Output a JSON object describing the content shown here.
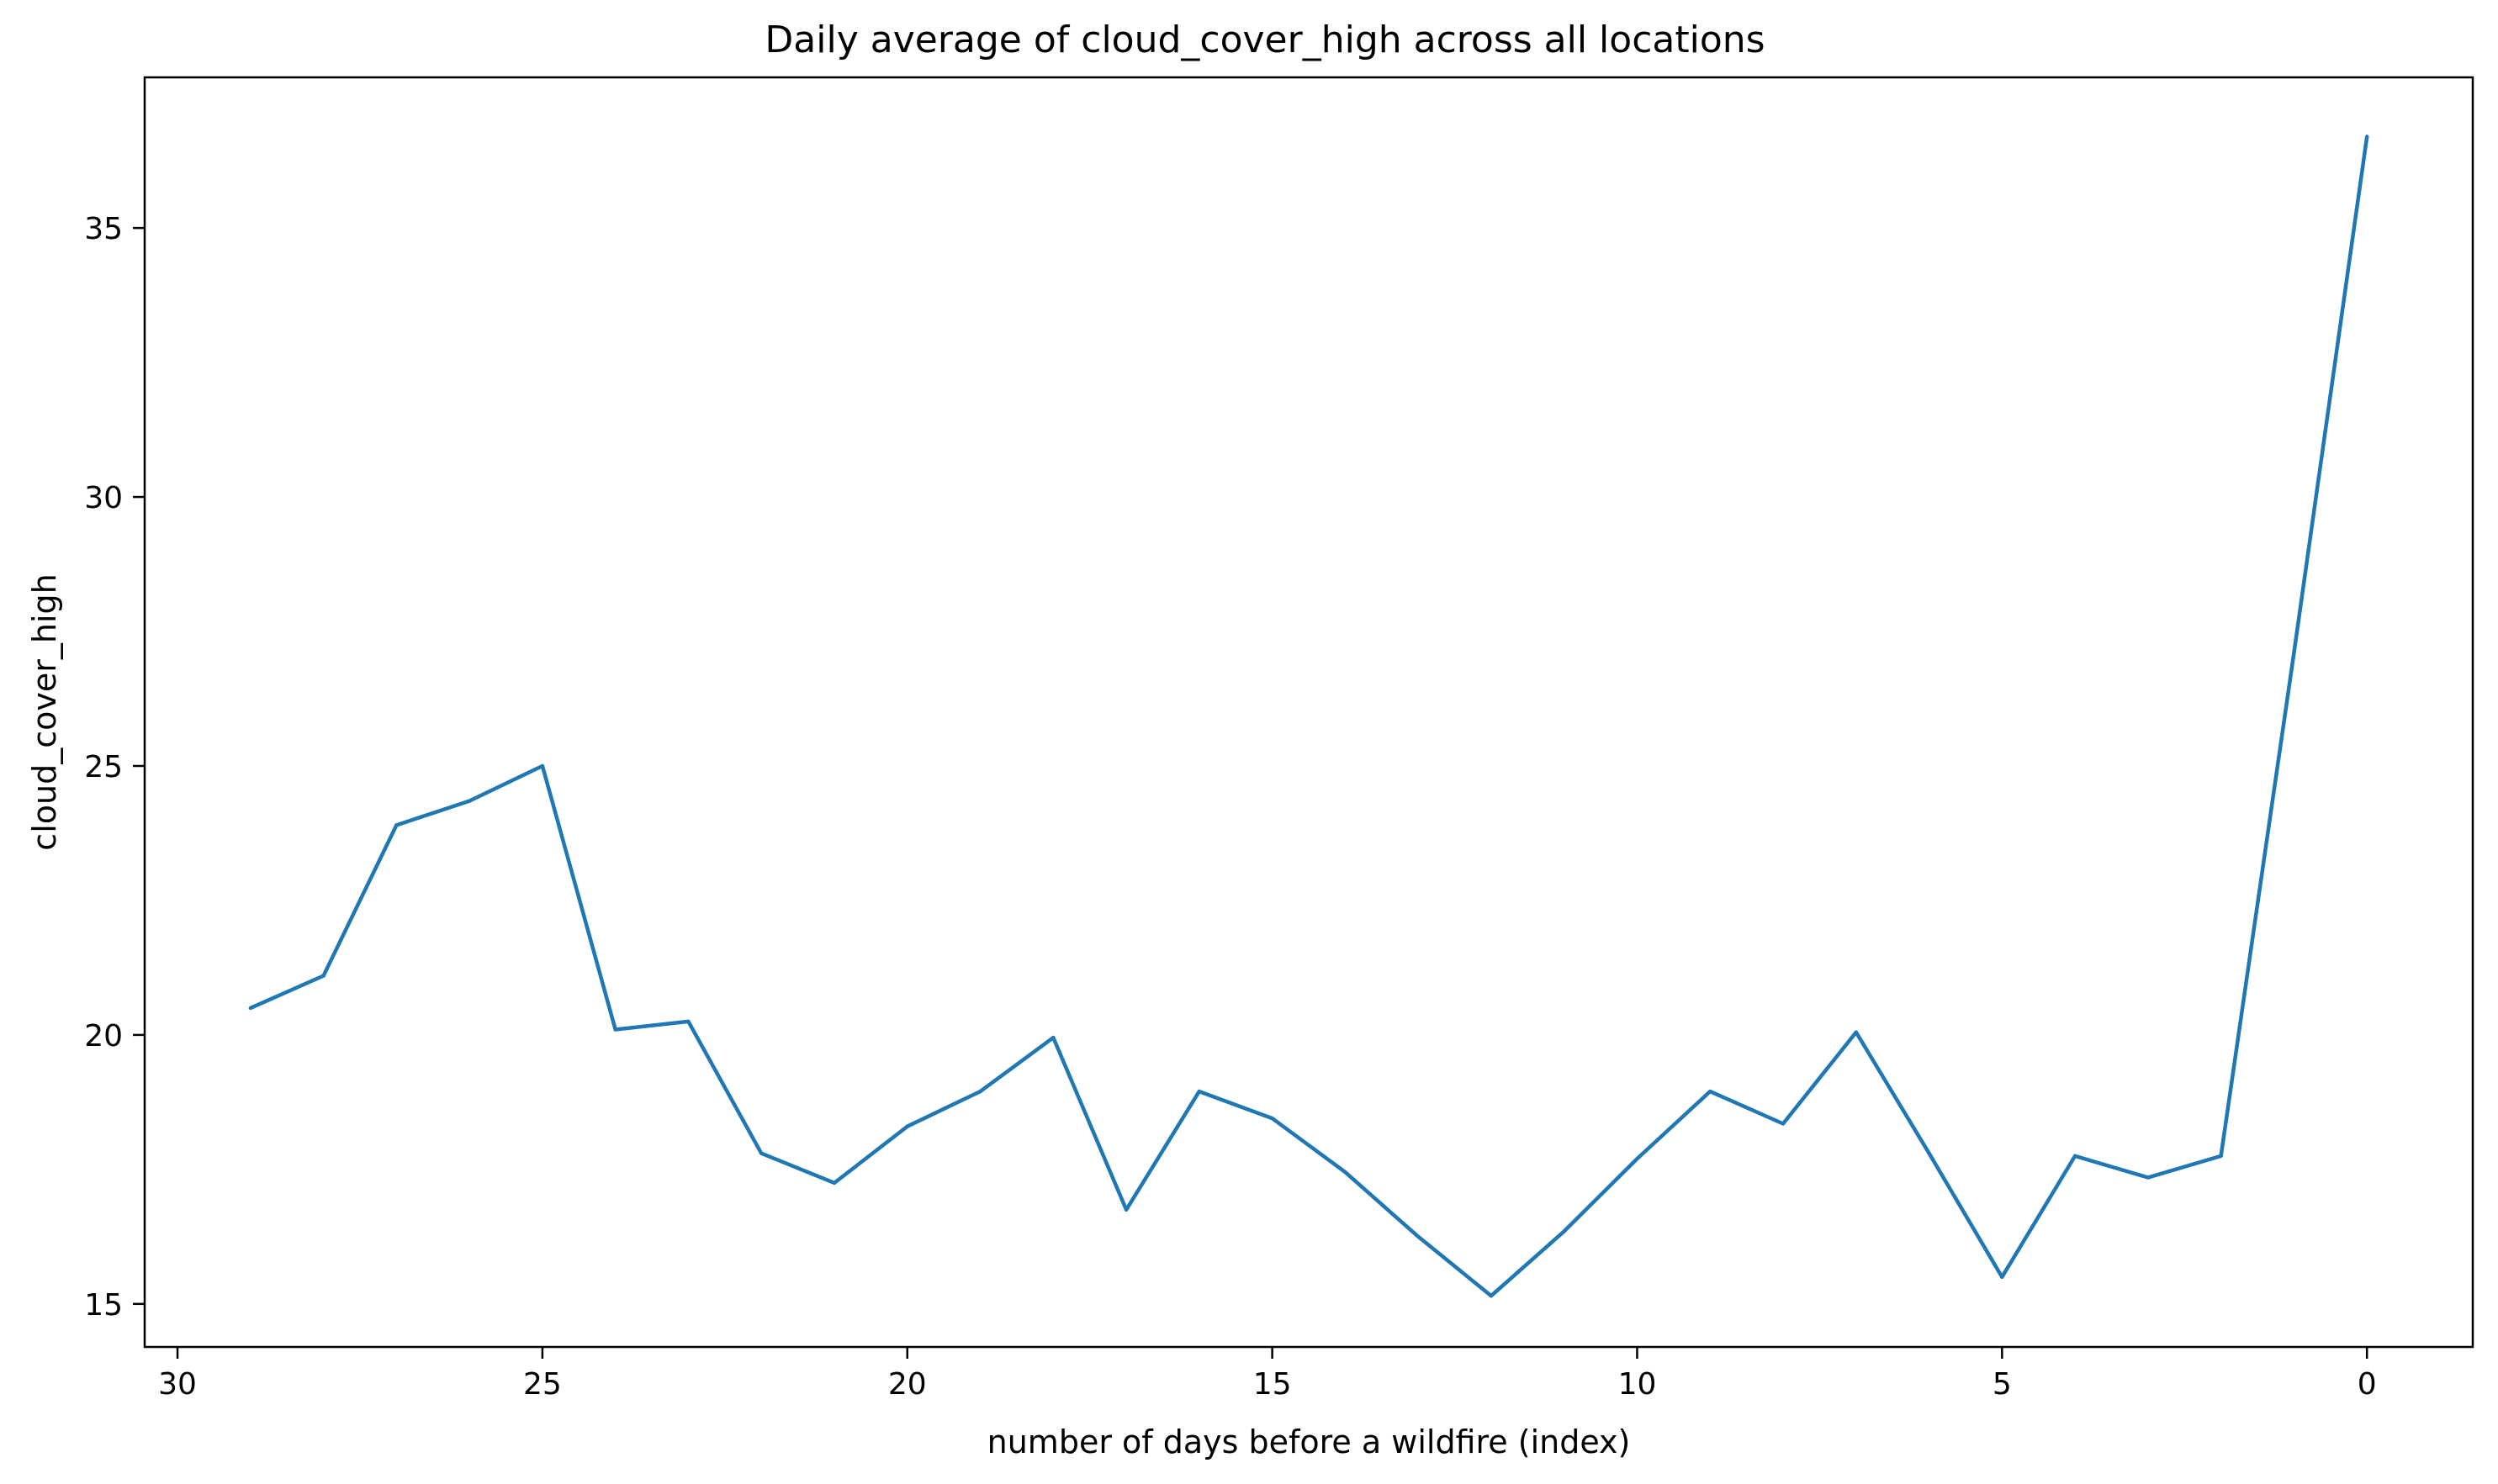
{
  "chart_data": {
    "type": "line",
    "title": "Daily average of cloud_cover_high across all locations",
    "xlabel": "number of days before a wildfire (index)",
    "ylabel": "cloud_cover_high",
    "xlim": [
      30.45,
      -1.45
    ],
    "ylim": [
      14.2,
      37.8
    ],
    "xticks": [
      30,
      25,
      20,
      15,
      10,
      5,
      0
    ],
    "yticks": [
      15,
      20,
      25,
      30,
      35
    ],
    "grid": false,
    "color": "#1f77b4",
    "series": [
      {
        "name": "cloud_cover_high",
        "x": [
          29,
          28,
          27,
          26,
          25,
          24,
          23,
          22,
          21,
          20,
          19,
          18,
          17,
          16,
          15,
          14,
          13,
          12,
          11,
          10,
          9,
          8,
          7,
          6,
          5,
          4,
          3,
          2,
          1,
          0
        ],
        "y": [
          20.5,
          21.1,
          23.9,
          24.35,
          25.0,
          20.1,
          20.25,
          17.8,
          17.25,
          18.3,
          18.95,
          19.95,
          16.75,
          18.95,
          18.45,
          17.45,
          16.25,
          15.15,
          16.35,
          17.7,
          18.95,
          18.35,
          20.05,
          17.8,
          15.5,
          17.75,
          17.35,
          17.75,
          27.1,
          36.7
        ]
      }
    ]
  }
}
